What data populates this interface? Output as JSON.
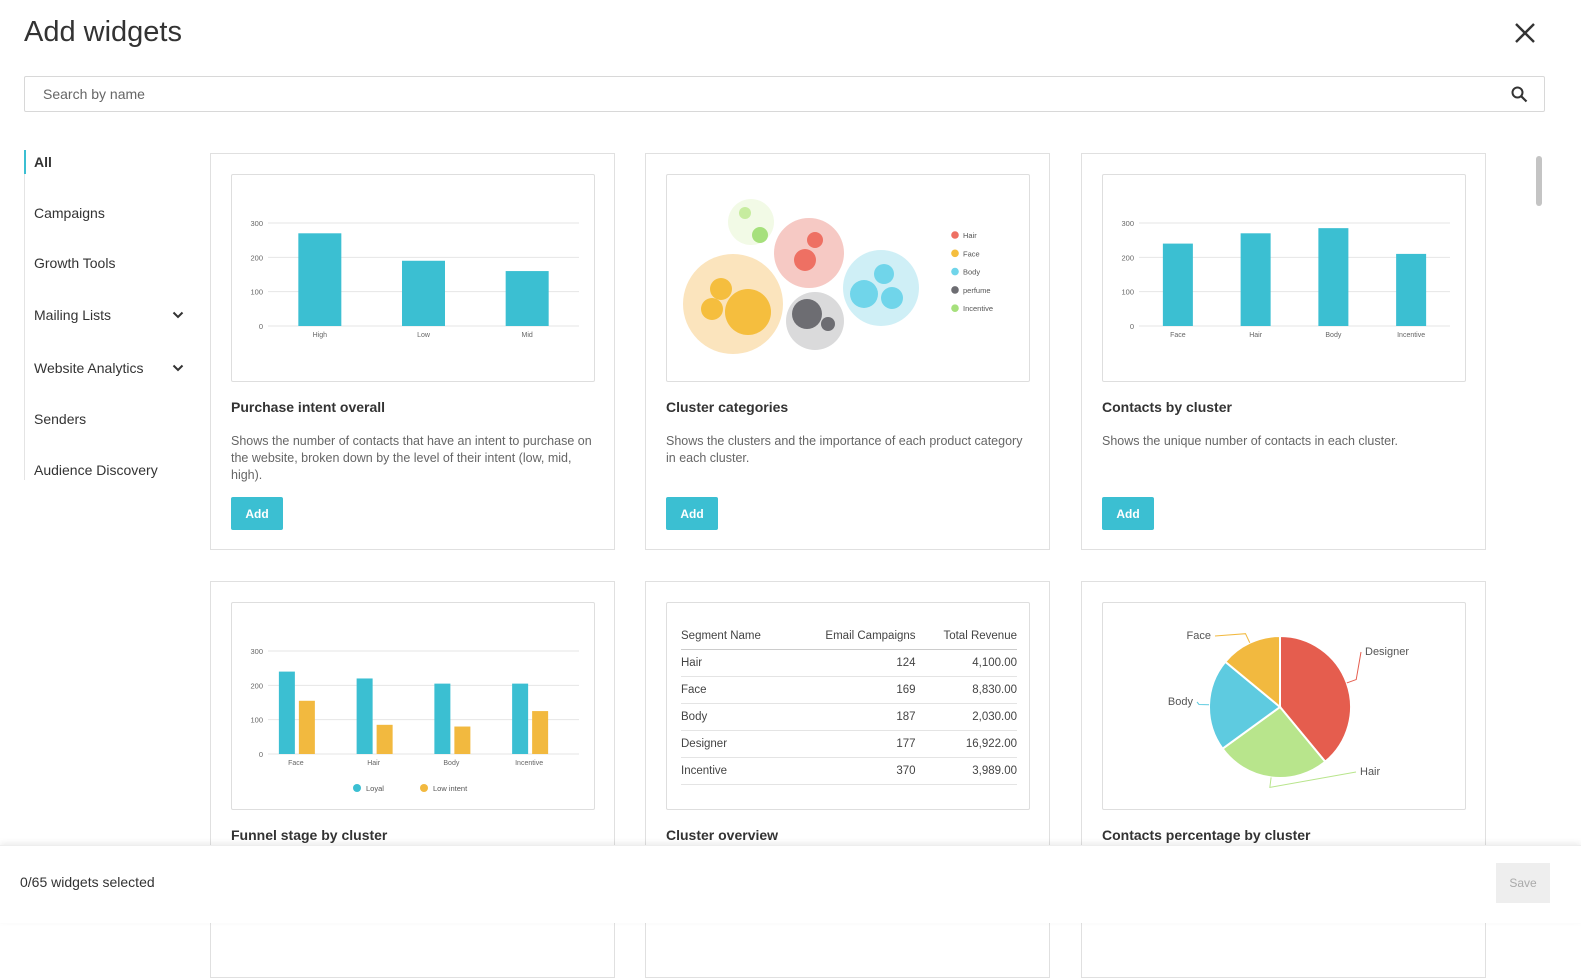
{
  "header": {
    "title": "Add widgets"
  },
  "search": {
    "placeholder": "Search by name"
  },
  "sidebar": {
    "items": [
      {
        "label": "All"
      },
      {
        "label": "Campaigns"
      },
      {
        "label": "Growth Tools"
      },
      {
        "label": "Mailing Lists"
      },
      {
        "label": "Website Analytics"
      },
      {
        "label": "Senders"
      },
      {
        "label": "Audience Discovery"
      }
    ]
  },
  "colors": {
    "accent": "#3bbfd2",
    "yellow": "#f2b93f",
    "red": "#e55d4e",
    "green": "#b8e58c",
    "gray": "#6e6e73"
  },
  "cards": [
    {
      "title": "Purchase intent overall",
      "description": "Shows the number of contacts that have an intent to purchase on the website, broken down by the level of their intent (low, mid, high).",
      "add_label": "Add",
      "chart_data": {
        "type": "bar",
        "categories": [
          "High",
          "Low",
          "Mid"
        ],
        "values": [
          270,
          190,
          160
        ],
        "yticks": [
          0,
          100,
          200,
          300
        ],
        "ylim": [
          0,
          300
        ]
      }
    },
    {
      "title": "Cluster categories",
      "description": "Shows the clusters and the importance of each product category in each cluster.",
      "add_label": "Add",
      "chart_data": {
        "type": "scatter",
        "legend": [
          "Hair",
          "Face",
          "Body",
          "perfume",
          "Incentive"
        ],
        "legend_colors": [
          "#ee7063",
          "#f5be3e",
          "#70d5ea",
          "#6d6d72",
          "#a6e07c"
        ]
      }
    },
    {
      "title": "Contacts by cluster",
      "description": "Shows the unique number of contacts in each cluster.",
      "add_label": "Add",
      "chart_data": {
        "type": "bar",
        "categories": [
          "Face",
          "Hair",
          "Body",
          "Incentive"
        ],
        "values": [
          240,
          270,
          285,
          210
        ],
        "yticks": [
          0,
          100,
          200,
          300
        ],
        "ylim": [
          0,
          300
        ]
      }
    },
    {
      "title": "Funnel stage by cluster",
      "chart_data": {
        "type": "bar",
        "categories": [
          "Face",
          "Hair",
          "Body",
          "Incentive"
        ],
        "yticks": [
          0,
          100,
          200,
          300
        ],
        "ylim": [
          0,
          300
        ],
        "series": [
          {
            "name": "Loyal",
            "values": [
              240,
              220,
              205,
              205
            ]
          },
          {
            "name": "Low intent",
            "values": [
              155,
              85,
              80,
              125
            ]
          }
        ]
      }
    },
    {
      "title": "Cluster overview",
      "table": {
        "headers": [
          "Segment Name",
          "Email Campaigns",
          "Total Revenue"
        ],
        "rows": [
          [
            "Hair",
            "124",
            "4,100.00"
          ],
          [
            "Face",
            "169",
            "8,830.00"
          ],
          [
            "Body",
            "187",
            "2,030.00"
          ],
          [
            "Designer",
            "177",
            "16,922.00"
          ],
          [
            "Incentive",
            "370",
            "3,989.00"
          ]
        ]
      }
    },
    {
      "title": "Contacts percentage by cluster",
      "chart_data": {
        "type": "pie",
        "slices": [
          {
            "label": "Designer",
            "value": 39,
            "color": "#e55d4e"
          },
          {
            "label": "Hair",
            "value": 26,
            "color": "#b8e58c"
          },
          {
            "label": "Body",
            "value": 21,
            "color": "#5ecbe0"
          },
          {
            "label": "Face",
            "value": 14,
            "color": "#f2b93f"
          }
        ]
      }
    }
  ],
  "footer": {
    "selected_text": "0/65 widgets selected",
    "save_label": "Save"
  }
}
